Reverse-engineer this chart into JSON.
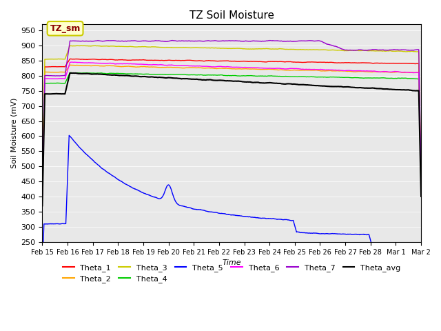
{
  "title": "TZ Soil Moisture",
  "ylabel": "Soil Moisture (mV)",
  "xlabel": "Time",
  "ylim": [
    250,
    970
  ],
  "yticks": [
    250,
    300,
    350,
    400,
    450,
    500,
    550,
    600,
    650,
    700,
    750,
    800,
    850,
    900,
    950
  ],
  "bg_color": "#e8e8e8",
  "fig_color": "#ffffff",
  "annotation_text": "TZ_sm",
  "annotation_color": "#8b0000",
  "annotation_bg": "#ffffcc",
  "annotation_border": "#cccc00",
  "series_colors": {
    "Theta_1": "#ff0000",
    "Theta_2": "#ffa500",
    "Theta_3": "#cccc00",
    "Theta_4": "#00cc00",
    "Theta_5": "#0000ff",
    "Theta_6": "#ff00ff",
    "Theta_7": "#9900cc",
    "Theta_avg": "#000000"
  },
  "date_labels": [
    "Feb 15",
    "Feb 16",
    "Feb 17",
    "Feb 18",
    "Feb 19",
    "Feb 20",
    "Feb 21",
    "Feb 22",
    "Feb 23",
    "Feb 24",
    "Feb 25",
    "Feb 26",
    "Feb 27",
    "Feb 28",
    "Mar 1",
    "Mar 2"
  ]
}
